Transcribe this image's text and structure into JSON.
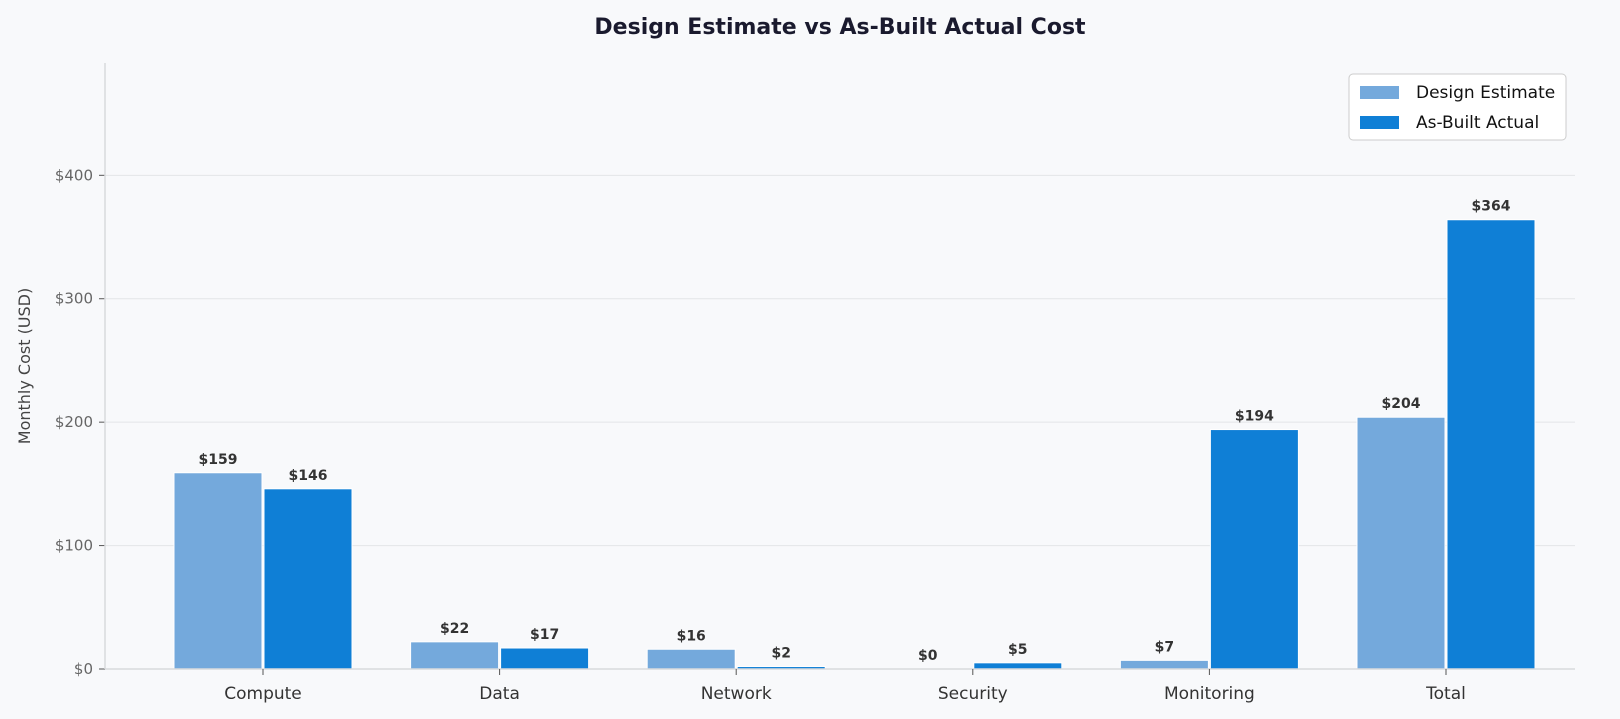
{
  "chart_data": {
    "type": "bar",
    "title": "Design Estimate vs As-Built Actual Cost",
    "xlabel": "",
    "ylabel": "Monthly Cost (USD)",
    "categories": [
      "Compute",
      "Data",
      "Network",
      "Security",
      "Monitoring",
      "Total"
    ],
    "series": [
      {
        "name": "Design Estimate",
        "color": "#74a9dc",
        "values": [
          159,
          22,
          16,
          0,
          7,
          204
        ],
        "labels": [
          "$159",
          "$22",
          "$16",
          "$0",
          "$7",
          "$204"
        ]
      },
      {
        "name": "As-Built Actual",
        "color": "#0f7fd6",
        "values": [
          146,
          17,
          2,
          5,
          194,
          364
        ],
        "labels": [
          "$146",
          "$17",
          "$2",
          "$5",
          "$194",
          "$364"
        ]
      }
    ],
    "ylim": [
      0,
      491
    ],
    "yticks": [
      0,
      100,
      200,
      300,
      400
    ],
    "ytick_labels": [
      "$0",
      "$100",
      "$200",
      "$300",
      "$400"
    ],
    "grid": "horizontal",
    "legend": "top-right"
  }
}
